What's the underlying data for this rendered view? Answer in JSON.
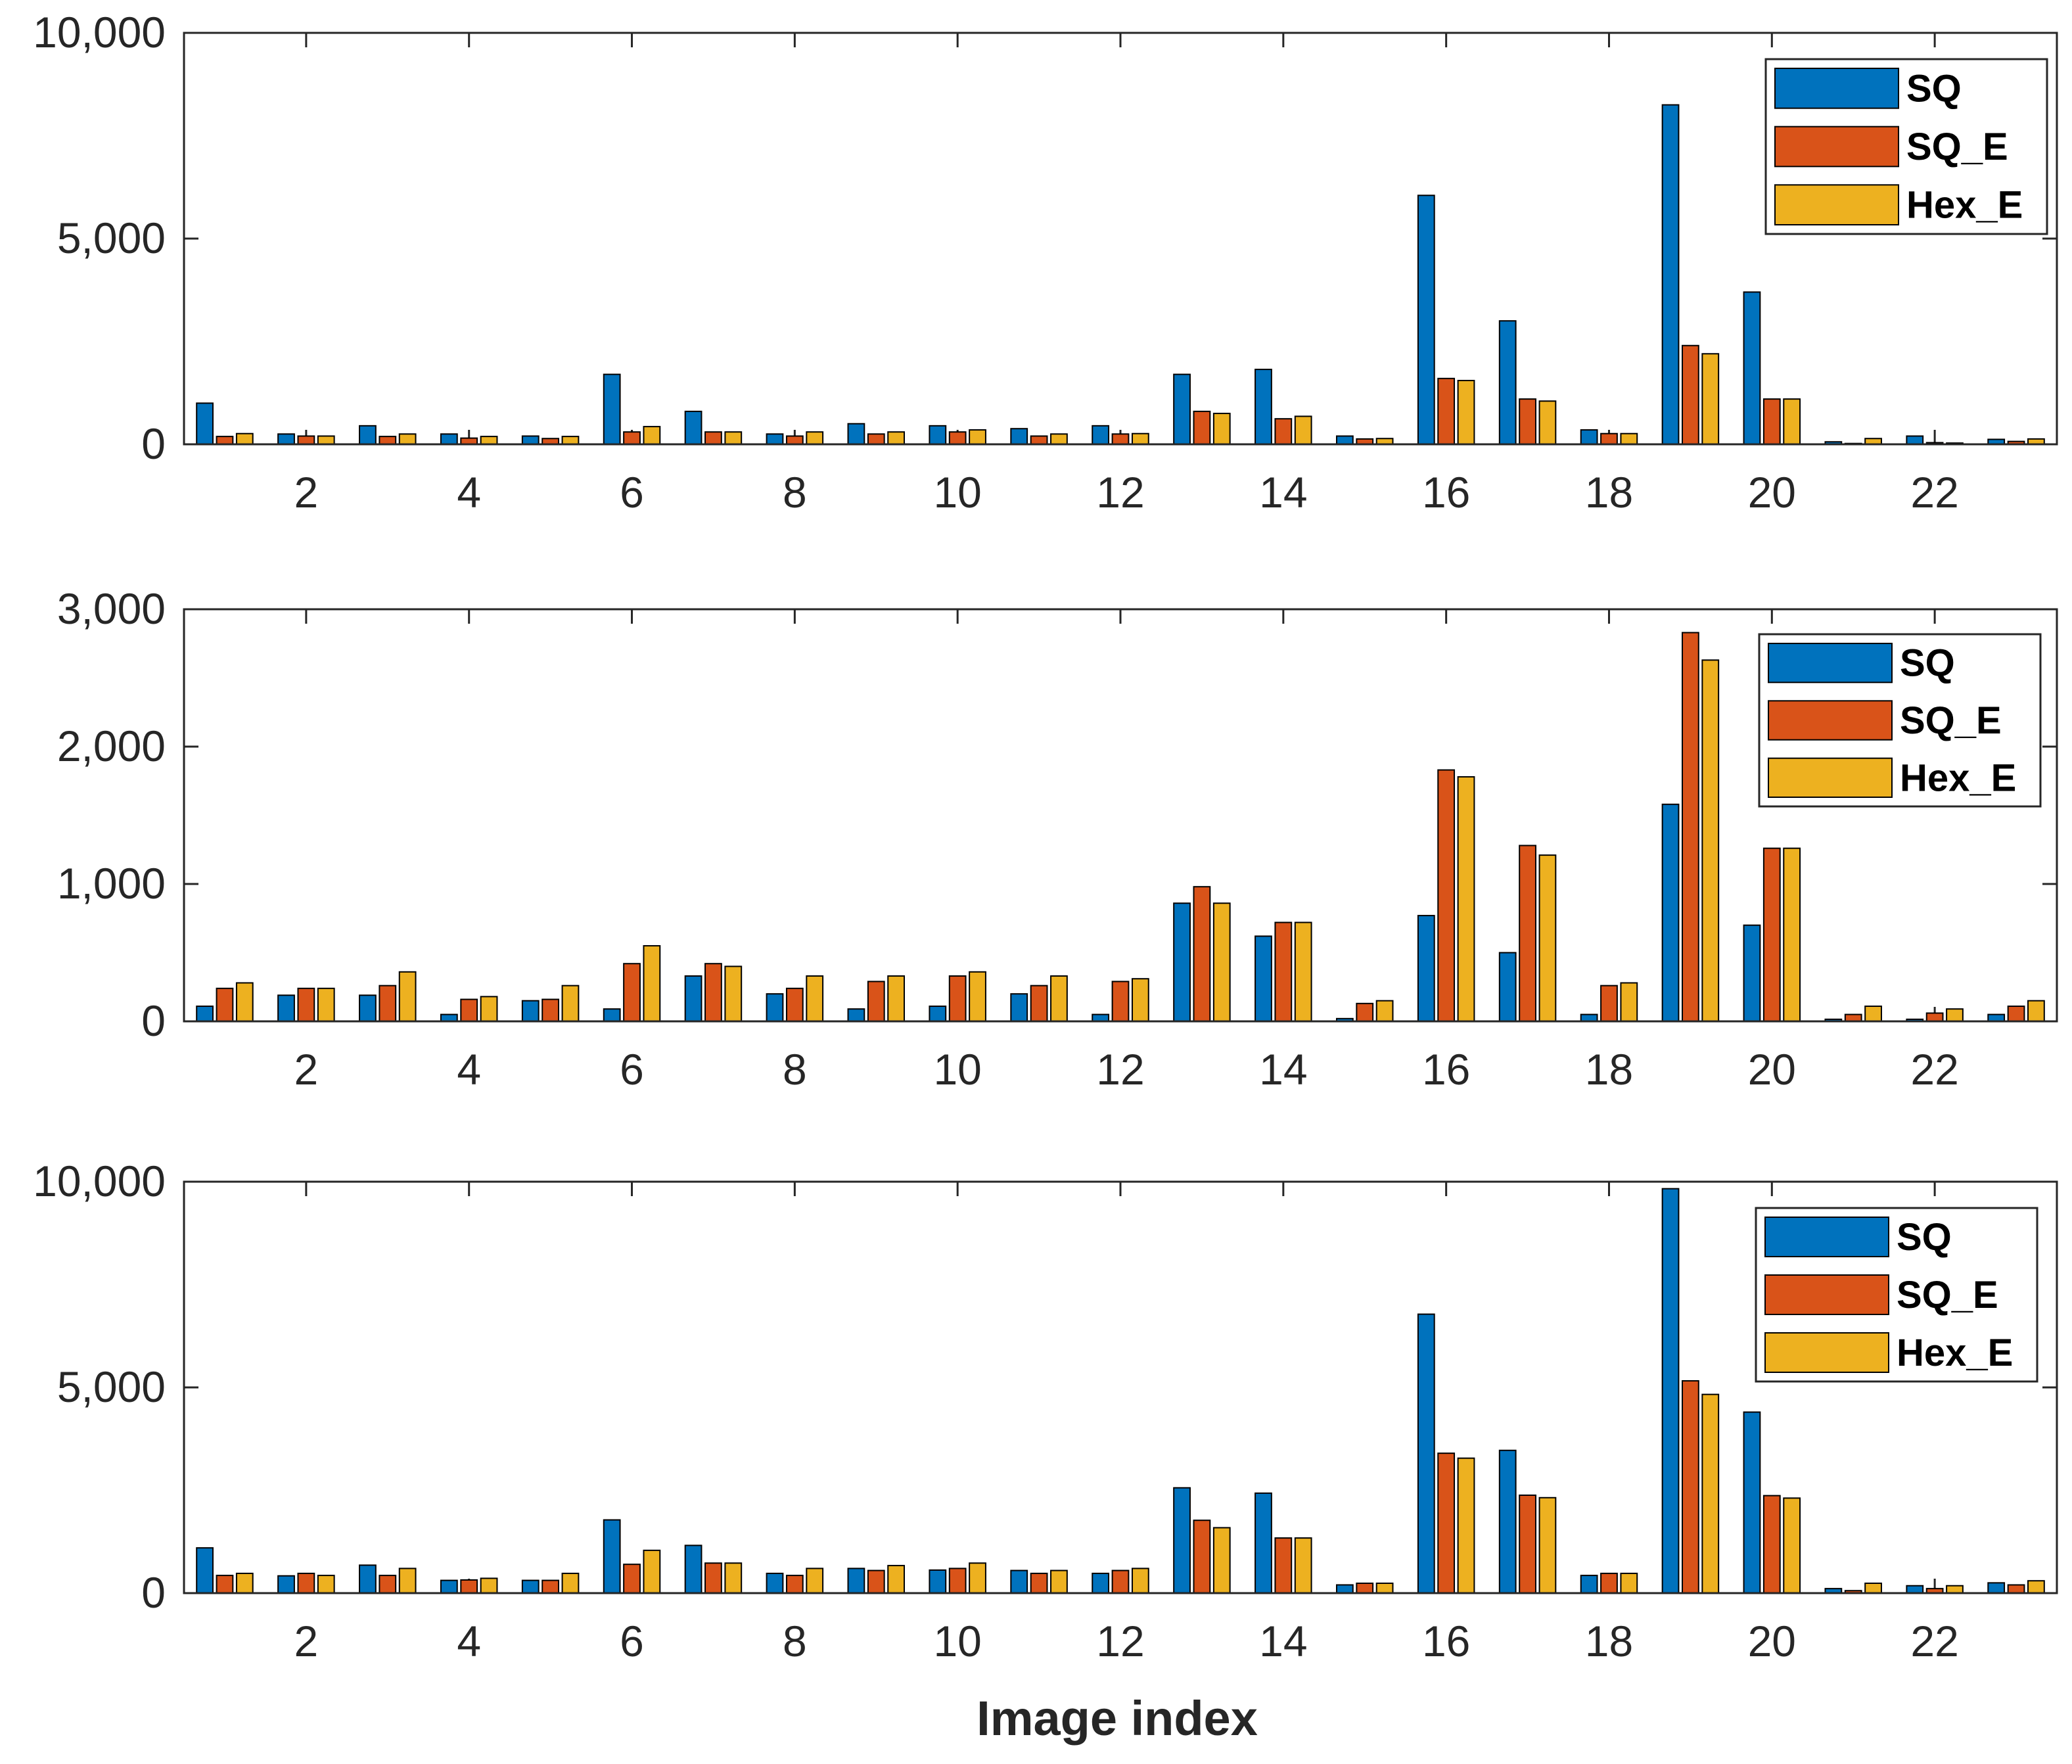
{
  "chart_data": [
    {
      "type": "bar",
      "x": [
        1,
        2,
        3,
        4,
        5,
        6,
        7,
        8,
        9,
        10,
        11,
        12,
        13,
        14,
        15,
        16,
        17,
        18,
        19,
        20,
        21,
        22,
        23
      ],
      "xticks": [
        "2",
        "4",
        "6",
        "8",
        "10",
        "12",
        "14",
        "16",
        "18",
        "20",
        "22"
      ],
      "ylim": [
        0,
        10000
      ],
      "yticks": [
        "0",
        "5,000",
        "10,000"
      ],
      "legend_position": "top-right",
      "series": [
        {
          "name": "SQ",
          "color": "#0072BD",
          "values": [
            1000,
            250,
            450,
            250,
            200,
            1700,
            800,
            250,
            500,
            450,
            380,
            450,
            1700,
            1820,
            200,
            6050,
            3000,
            350,
            8250,
            3700,
            60,
            200,
            120
          ]
        },
        {
          "name": "SQ_E",
          "color": "#D95319",
          "values": [
            190,
            200,
            190,
            150,
            140,
            300,
            300,
            200,
            250,
            300,
            200,
            250,
            800,
            620,
            130,
            1600,
            1100,
            260,
            2400,
            1100,
            20,
            40,
            70
          ]
        },
        {
          "name": "Hex_E",
          "color": "#EDB120",
          "values": [
            260,
            200,
            250,
            190,
            190,
            430,
            300,
            300,
            300,
            350,
            250,
            260,
            750,
            680,
            140,
            1550,
            1050,
            260,
            2200,
            1100,
            140,
            30,
            130
          ]
        }
      ],
      "xlabel": "",
      "ylabel": ""
    },
    {
      "type": "bar",
      "x": [
        1,
        2,
        3,
        4,
        5,
        6,
        7,
        8,
        9,
        10,
        11,
        12,
        13,
        14,
        15,
        16,
        17,
        18,
        19,
        20,
        21,
        22,
        23
      ],
      "xticks": [
        "2",
        "4",
        "6",
        "8",
        "10",
        "12",
        "14",
        "16",
        "18",
        "20",
        "22"
      ],
      "ylim": [
        0,
        3000
      ],
      "yticks": [
        "0",
        "1,000",
        "2,000",
        "3,000"
      ],
      "legend_position": "top-right",
      "series": [
        {
          "name": "SQ",
          "color": "#0072BD",
          "values": [
            110,
            190,
            190,
            50,
            150,
            90,
            330,
            200,
            90,
            110,
            200,
            50,
            860,
            620,
            20,
            770,
            500,
            50,
            1580,
            700,
            15,
            15,
            50
          ]
        },
        {
          "name": "SQ_E",
          "color": "#D95319",
          "values": [
            240,
            240,
            260,
            160,
            160,
            420,
            420,
            240,
            290,
            330,
            260,
            290,
            980,
            720,
            130,
            1830,
            1280,
            260,
            2830,
            1260,
            50,
            60,
            110
          ]
        },
        {
          "name": "Hex_E",
          "color": "#EDB120",
          "values": [
            280,
            240,
            360,
            180,
            260,
            550,
            400,
            330,
            330,
            360,
            330,
            310,
            860,
            720,
            150,
            1780,
            1210,
            280,
            2630,
            1260,
            110,
            90,
            150
          ]
        }
      ],
      "xlabel": "",
      "ylabel": ""
    },
    {
      "type": "bar",
      "x": [
        1,
        2,
        3,
        4,
        5,
        6,
        7,
        8,
        9,
        10,
        11,
        12,
        13,
        14,
        15,
        16,
        17,
        18,
        19,
        20,
        21,
        22,
        23
      ],
      "xticks": [
        "2",
        "4",
        "6",
        "8",
        "10",
        "12",
        "14",
        "16",
        "18",
        "20",
        "22"
      ],
      "ylim": [
        0,
        10000
      ],
      "yticks": [
        "0",
        "5,000",
        "10,000"
      ],
      "legend_position": "top-right",
      "series": [
        {
          "name": "SQ",
          "color": "#0072BD",
          "values": [
            1100,
            420,
            680,
            310,
            310,
            1780,
            1160,
            480,
            600,
            560,
            550,
            480,
            2560,
            2430,
            200,
            6780,
            3470,
            430,
            9830,
            4400,
            110,
            180,
            250
          ]
        },
        {
          "name": "SQ_E",
          "color": "#D95319",
          "values": [
            430,
            480,
            430,
            320,
            310,
            700,
            730,
            430,
            550,
            600,
            480,
            550,
            1770,
            1340,
            240,
            3400,
            2380,
            480,
            5160,
            2370,
            60,
            110,
            200
          ]
        },
        {
          "name": "Hex_E",
          "color": "#EDB120",
          "values": [
            480,
            430,
            600,
            360,
            480,
            1040,
            730,
            600,
            670,
            730,
            550,
            600,
            1590,
            1340,
            240,
            3280,
            2320,
            480,
            4830,
            2310,
            240,
            180,
            300
          ]
        }
      ],
      "xlabel": "Image index",
      "ylabel": ""
    }
  ]
}
